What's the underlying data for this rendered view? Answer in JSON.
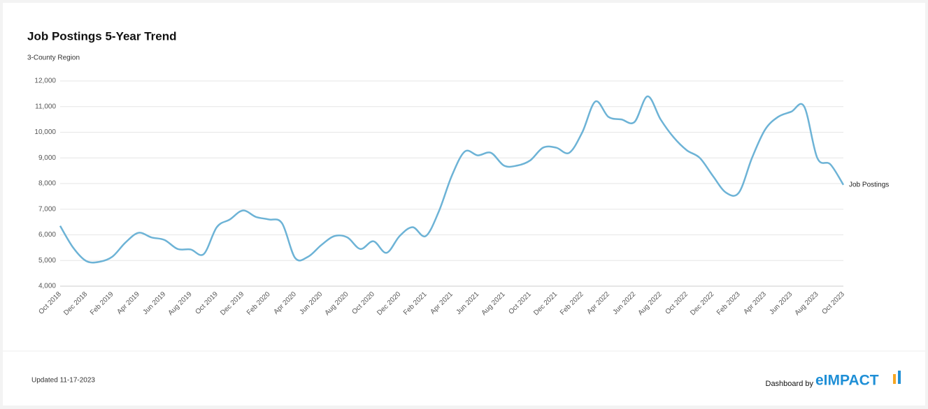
{
  "chart_data": {
    "type": "line",
    "title": "Job Postings 5-Year Trend",
    "subtitle": "3-County Region",
    "categories": [
      "Oct 2018",
      null,
      "Dec 2018",
      null,
      "Feb 2019",
      null,
      "Apr 2019",
      null,
      "Jun 2019",
      null,
      "Aug 2019",
      null,
      "Oct 2019",
      null,
      "Dec 2019",
      null,
      "Feb 2020",
      null,
      "Apr 2020",
      null,
      "Jun 2020",
      null,
      "Aug 2020",
      null,
      "Oct 2020",
      null,
      "Dec 2020",
      null,
      "Feb 2021",
      null,
      "Apr 2021",
      null,
      "Jun 2021",
      null,
      "Aug 2021",
      null,
      "Oct 2021",
      null,
      "Dec 2021",
      null,
      "Feb 2022",
      null,
      "Apr 2022",
      null,
      "Jun 2022",
      null,
      "Aug 2022",
      null,
      "Oct 2022",
      null,
      "Dec 2022",
      null,
      "Feb 2023",
      null,
      "Apr 2023",
      null,
      "Jun 2023",
      null,
      "Aug 2023",
      null,
      "Oct 2023"
    ],
    "series": [
      {
        "name": "Job Postings",
        "color": "#6db3d6",
        "values": [
          6350,
          5500,
          4980,
          4950,
          5150,
          5700,
          6080,
          5900,
          5800,
          5450,
          5430,
          5250,
          6300,
          6600,
          6950,
          6700,
          6600,
          6450,
          5100,
          5150,
          5600,
          5950,
          5900,
          5450,
          5750,
          5300,
          5950,
          6300,
          5950,
          6900,
          8300,
          9250,
          9100,
          9200,
          8700,
          8700,
          8900,
          9400,
          9400,
          9200,
          10000,
          11200,
          10600,
          10500,
          10400,
          11400,
          10500,
          9800,
          9300,
          9000,
          8300,
          7650,
          7650,
          9000,
          10100,
          10600,
          10800,
          11000,
          9000,
          8750,
          7950
        ]
      }
    ],
    "ylim": [
      4000,
      12000
    ],
    "yticks": [
      {
        "value": 4000,
        "label": "4,000"
      },
      {
        "value": 5000,
        "label": "5,000"
      },
      {
        "value": 6000,
        "label": "6,000"
      },
      {
        "value": 7000,
        "label": "7,000"
      },
      {
        "value": 8000,
        "label": "8,000"
      },
      {
        "value": 9000,
        "label": "9,000"
      },
      {
        "value": 10000,
        "label": "10,000"
      },
      {
        "value": 11000,
        "label": "11,000"
      },
      {
        "value": 12000,
        "label": "12,000"
      }
    ],
    "grid": true
  },
  "footer": {
    "updated": "Updated 11-17-2023",
    "credit": "Dashboard by",
    "brand": "eIMPACT"
  }
}
